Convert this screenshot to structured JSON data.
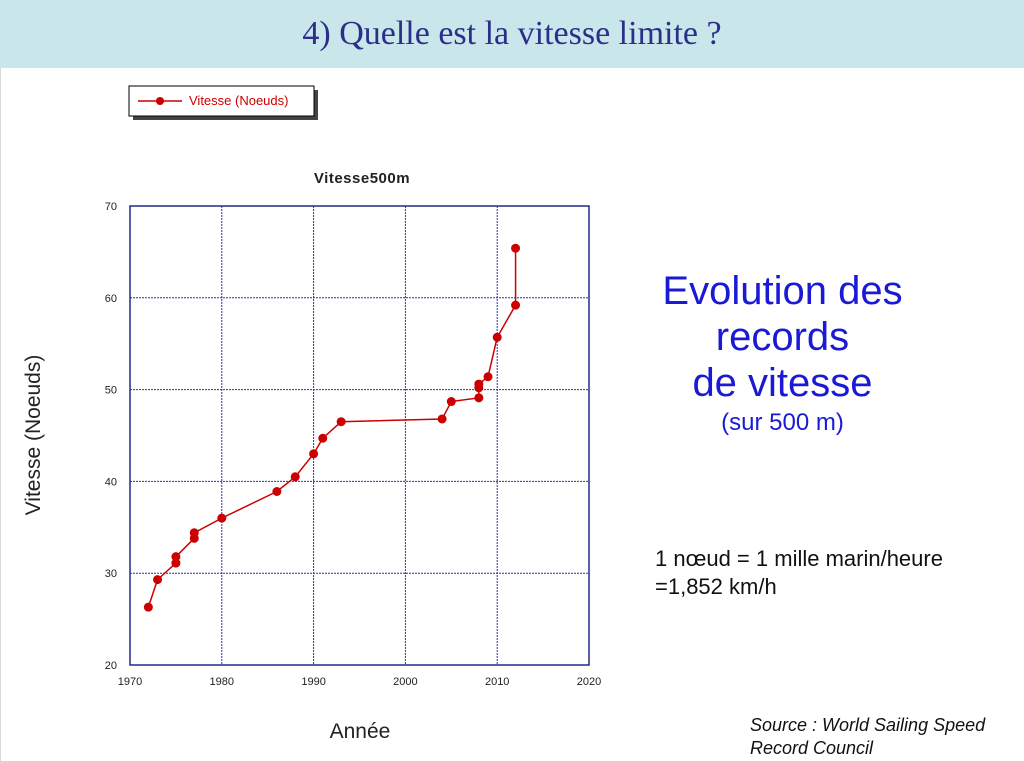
{
  "slide": {
    "title": "4) Quelle est la vitesse limite ?",
    "evolution_lines": [
      "Evolution des",
      "records",
      "de vitesse"
    ],
    "evolution_sub": "(sur 500 m)",
    "knot_line1": "1 nœud = 1 mille marin/heure",
    "knot_line2": "=1,852 km/h",
    "source_line1": "Source : World Sailing Speed",
    "source_line2": "Record Council"
  },
  "chart_data": {
    "type": "line",
    "title": "Vitesse500m",
    "xlabel": "Année",
    "ylabel": "Vitesse (Noeuds)",
    "xlim": [
      1970,
      2020
    ],
    "ylim": [
      20,
      70
    ],
    "x_ticks": [
      1970,
      1980,
      1990,
      2000,
      2010,
      2020
    ],
    "y_ticks": [
      20,
      30,
      40,
      50,
      60,
      70
    ],
    "grid": true,
    "legend_position": "top-left",
    "series": [
      {
        "name": "Vitesse (Noeuds)",
        "color": "#cc0000",
        "marker": "circle",
        "points": [
          [
            1972,
            26.3
          ],
          [
            1973,
            29.3
          ],
          [
            1975,
            31.1
          ],
          [
            1975,
            31.8
          ],
          [
            1977,
            33.8
          ],
          [
            1977,
            34.4
          ],
          [
            1980,
            36.0
          ],
          [
            1986,
            38.9
          ],
          [
            1988,
            40.5
          ],
          [
            1990,
            43.0
          ],
          [
            1991,
            44.7
          ],
          [
            1993,
            46.5
          ],
          [
            2004,
            46.8
          ],
          [
            2005,
            48.7
          ],
          [
            2008,
            49.1
          ],
          [
            2008,
            50.2
          ],
          [
            2008,
            50.6
          ],
          [
            2009,
            51.4
          ],
          [
            2010,
            55.7
          ],
          [
            2012,
            59.2
          ],
          [
            2012,
            65.4
          ]
        ]
      }
    ]
  }
}
